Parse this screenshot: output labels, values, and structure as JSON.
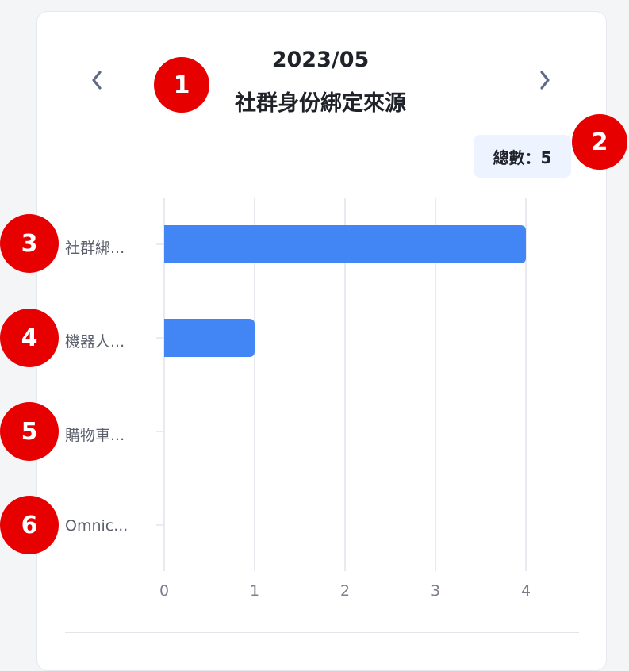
{
  "header": {
    "prev_label": "‹",
    "next_label": "›",
    "date": "2023/05",
    "title": "社群身份綁定來源"
  },
  "total": {
    "label": "總數：5"
  },
  "badges": [
    "1",
    "2",
    "3",
    "4",
    "5",
    "6"
  ],
  "colors": {
    "bar": "#4285f4",
    "grid": "#e1e4ea",
    "badge": "#e60000"
  },
  "chart_data": {
    "type": "bar",
    "orientation": "horizontal",
    "title": "社群身份綁定來源",
    "categories": [
      "社群綁...",
      "機器人...",
      "購物車...",
      "Omnic..."
    ],
    "values": [
      4,
      1,
      0,
      0
    ],
    "xlim": [
      0,
      4
    ],
    "xticks": [
      "0",
      "1",
      "2",
      "3",
      "4"
    ],
    "grid": true,
    "xlabel": "",
    "ylabel": ""
  }
}
